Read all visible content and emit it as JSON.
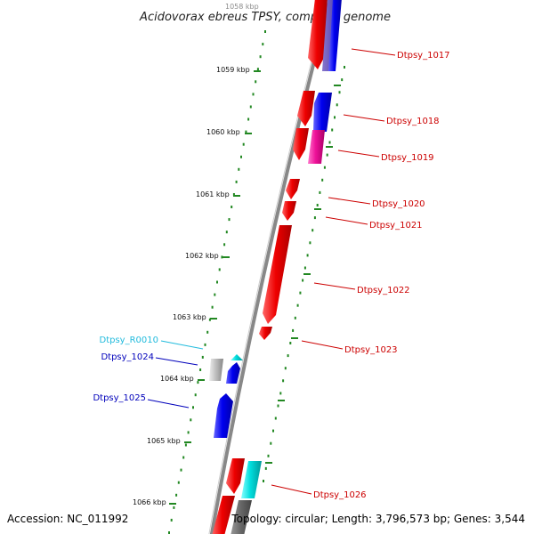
{
  "title": "Acidovorax ebreus TPSY, complete genome",
  "footer": {
    "accession": "Accession: NC_011992",
    "summary": "Topology: circular; Length: 3,796,573 bp; Genes: 3,544"
  },
  "ruler_labels": [
    "1058 kbp",
    "1059 kbp",
    "1060 kbp",
    "1061 kbp",
    "1062 kbp",
    "1063 kbp",
    "1064 kbp",
    "1065 kbp",
    "1066 kbp"
  ],
  "gene_labels": [
    {
      "text": "Dtpsy_1017",
      "color": "#cc0000"
    },
    {
      "text": "Dtpsy_1018",
      "color": "#cc0000"
    },
    {
      "text": "Dtpsy_1019",
      "color": "#cc0000"
    },
    {
      "text": "Dtpsy_1020",
      "color": "#cc0000"
    },
    {
      "text": "Dtpsy_1021",
      "color": "#cc0000"
    },
    {
      "text": "Dtpsy_1022",
      "color": "#cc0000"
    },
    {
      "text": "Dtpsy_1023",
      "color": "#cc0000"
    },
    {
      "text": "Dtpsy_R0010",
      "color": "#22bbdd"
    },
    {
      "text": "Dtpsy_1024",
      "color": "#0000bb"
    },
    {
      "text": "Dtpsy_1025",
      "color": "#0000bb"
    },
    {
      "text": "Dtpsy_1026",
      "color": "#cc0000"
    }
  ],
  "colors": {
    "forward_cds": "#ee0000",
    "reverse_cds": "#0000ee",
    "magenta_cds": "#ee1199",
    "cyan_cds": "#00dddd",
    "rna": "#33bbee",
    "pseudo": "#bbbbbb",
    "backbone": "#888888",
    "ticks": "#228822"
  }
}
